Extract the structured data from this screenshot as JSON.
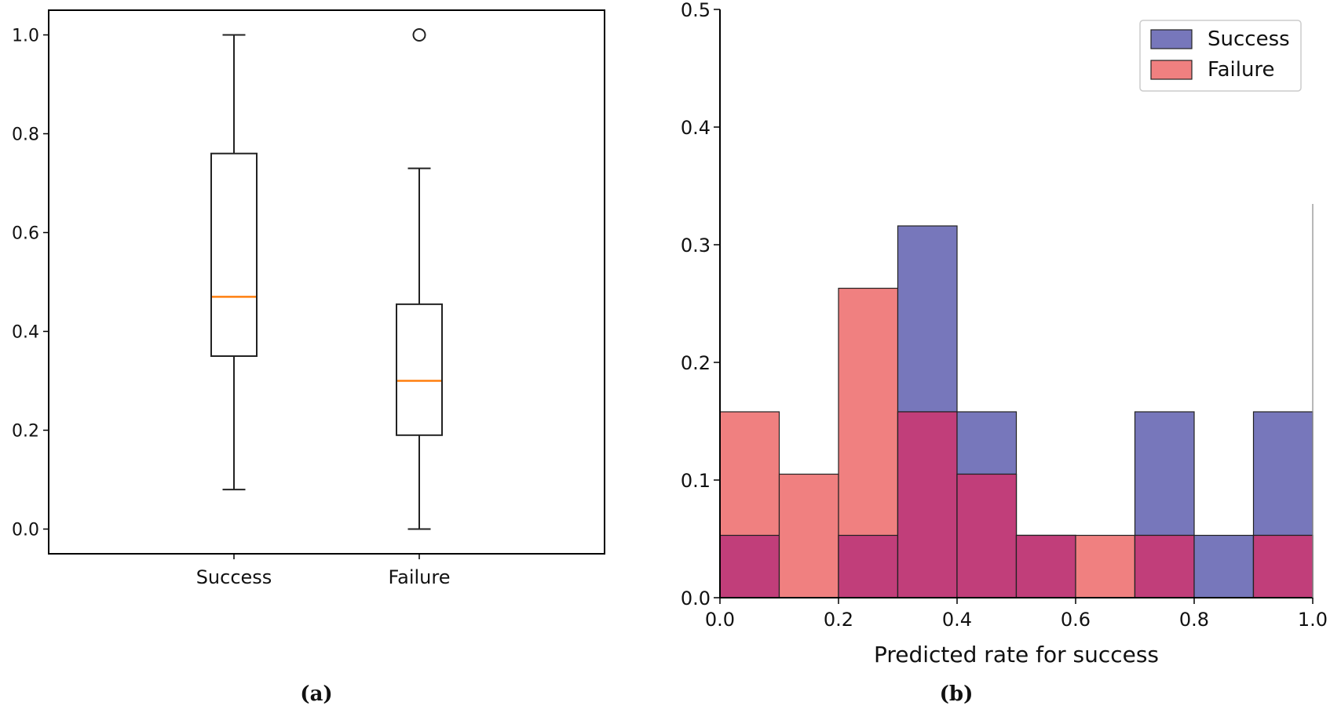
{
  "chart_data": [
    {
      "type": "box",
      "panel": "(a)",
      "categories": [
        "Success",
        "Failure"
      ],
      "boxes": [
        {
          "name": "Success",
          "whisker_low": 0.08,
          "q1": 0.35,
          "median": 0.47,
          "q3": 0.76,
          "whisker_high": 1.0,
          "outliers": []
        },
        {
          "name": "Failure",
          "whisker_low": 0.0,
          "q1": 0.19,
          "median": 0.3,
          "q3": 0.455,
          "whisker_high": 0.73,
          "outliers": [
            1.0
          ]
        }
      ],
      "ylim": [
        -0.05,
        1.05
      ],
      "yticks": [
        0.0,
        0.2,
        0.4,
        0.6,
        0.8,
        1.0
      ],
      "ytick_labels": [
        "0.0",
        "0.2",
        "0.4",
        "0.6",
        "0.8",
        "1.0"
      ],
      "title": "",
      "xlabel": "",
      "ylabel": "",
      "colors": {
        "box": "#222222",
        "median": "#ff7f0e"
      }
    },
    {
      "type": "histogram",
      "panel": "(b)",
      "bin_edges": [
        0.0,
        0.1,
        0.2,
        0.3,
        0.4,
        0.5,
        0.6,
        0.7,
        0.8,
        0.9,
        1.0
      ],
      "series": [
        {
          "name": "Success",
          "values": [
            0.053,
            0.0,
            0.053,
            0.316,
            0.158,
            0.053,
            0.0,
            0.158,
            0.053,
            0.158
          ],
          "color": "#7777bb"
        },
        {
          "name": "Failure",
          "values": [
            0.158,
            0.105,
            0.263,
            0.158,
            0.105,
            0.053,
            0.053,
            0.053,
            0.0,
            0.053
          ],
          "color": "#f08080"
        }
      ],
      "overlap_color": "#c13e7a",
      "xlim": [
        0.0,
        1.0
      ],
      "ylim": [
        0.0,
        0.5
      ],
      "xticks": [
        0.0,
        0.2,
        0.4,
        0.6,
        0.8,
        1.0
      ],
      "xtick_labels": [
        "0.0",
        "0.2",
        "0.4",
        "0.6",
        "0.8",
        "1.0"
      ],
      "yticks": [
        0.0,
        0.1,
        0.2,
        0.3,
        0.4,
        0.5
      ],
      "ytick_labels": [
        "0.0",
        "0.1",
        "0.2",
        "0.3",
        "0.4",
        "0.5"
      ],
      "xlabel": "Predicted rate for success",
      "ylabel": "",
      "title": "",
      "legend": {
        "position": "top-right",
        "entries": [
          "Success",
          "Failure"
        ]
      }
    }
  ]
}
